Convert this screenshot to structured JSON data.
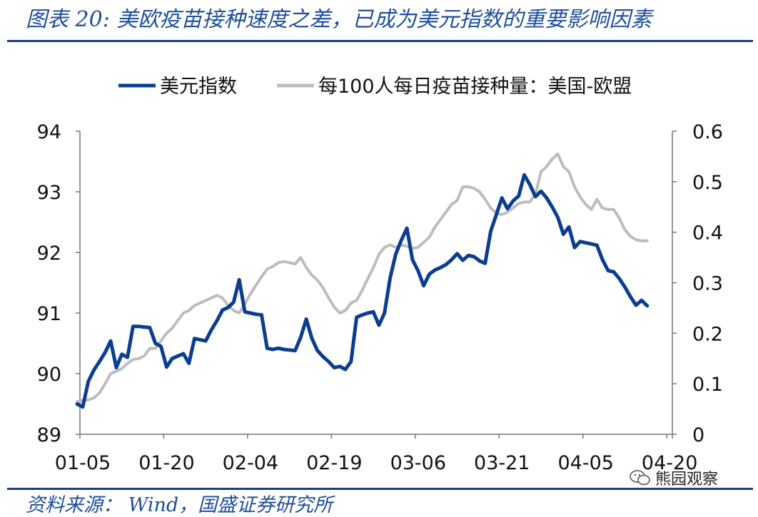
{
  "header": {
    "title": "图表 20:  美欧疫苗接种速度之差，已成为美元指数的重要影响因素"
  },
  "footer": {
    "source": "资料来源： Wind，国盛证券研究所"
  },
  "watermark": {
    "text": "熊园观察",
    "icon": "wechat-icon"
  },
  "colors": {
    "usd": "#0b3d91",
    "vax": "#bdbdbd",
    "rule": "#1a3f86",
    "title": "#1f4e9a"
  },
  "chart_data": {
    "type": "line",
    "title": "",
    "x_ticks": [
      "01-05",
      "01-20",
      "02-04",
      "02-19",
      "03-06",
      "03-21",
      "04-05",
      "04-20"
    ],
    "x_range": [
      1.5,
      107.5
    ],
    "y_left": {
      "ticks": [
        "94",
        "93",
        "92",
        "91",
        "90",
        "89"
      ],
      "range": [
        89,
        94
      ]
    },
    "y_right": {
      "ticks": [
        "0.6",
        "0.5",
        "0.4",
        "0.3",
        "0.2",
        "0.1",
        "0"
      ],
      "range": [
        0,
        0.6
      ]
    },
    "grid": false,
    "legend_position": "top-center",
    "series": [
      {
        "name": "美元指数",
        "axis": "left",
        "color": "#0b3d91",
        "points": [
          [
            1,
            89.5
          ],
          [
            2,
            89.45
          ],
          [
            3,
            89.87
          ],
          [
            4,
            90.06
          ],
          [
            5,
            90.2
          ],
          [
            6,
            90.35
          ],
          [
            7,
            90.54
          ],
          [
            8,
            90.1
          ],
          [
            9,
            90.32
          ],
          [
            10,
            90.27
          ],
          [
            11,
            90.78
          ],
          [
            12,
            90.78
          ],
          [
            13,
            90.77
          ],
          [
            14,
            90.76
          ],
          [
            15,
            90.5
          ],
          [
            16,
            90.45
          ],
          [
            17,
            90.11
          ],
          [
            18,
            90.25
          ],
          [
            19,
            90.29
          ],
          [
            20,
            90.33
          ],
          [
            21,
            90.17
          ],
          [
            22,
            90.58
          ],
          [
            23,
            90.56
          ],
          [
            24,
            90.54
          ],
          [
            25,
            90.72
          ],
          [
            26,
            90.87
          ],
          [
            27,
            91.05
          ],
          [
            28,
            91.09
          ],
          [
            29,
            91.18
          ],
          [
            30,
            91.55
          ],
          [
            31,
            91.02
          ],
          [
            32,
            91.0
          ],
          [
            33,
            90.98
          ],
          [
            34,
            90.97
          ],
          [
            35,
            90.42
          ],
          [
            36,
            90.4
          ],
          [
            37,
            90.42
          ],
          [
            38,
            90.4
          ],
          [
            39,
            90.39
          ],
          [
            40,
            90.38
          ],
          [
            41,
            90.6
          ],
          [
            42,
            90.9
          ],
          [
            43,
            90.58
          ],
          [
            44,
            90.38
          ],
          [
            45,
            90.28
          ],
          [
            46,
            90.2
          ],
          [
            47,
            90.1
          ],
          [
            48,
            90.12
          ],
          [
            49,
            90.07
          ],
          [
            50,
            90.2
          ],
          [
            51,
            90.93
          ],
          [
            52,
            90.97
          ],
          [
            53,
            91.0
          ],
          [
            54,
            91.02
          ],
          [
            55,
            90.8
          ],
          [
            56,
            91.0
          ],
          [
            57,
            91.58
          ],
          [
            58,
            91.97
          ],
          [
            59,
            92.2
          ],
          [
            60,
            92.4
          ],
          [
            61,
            91.88
          ],
          [
            62,
            91.7
          ],
          [
            63,
            91.45
          ],
          [
            64,
            91.64
          ],
          [
            65,
            91.71
          ],
          [
            66,
            91.75
          ],
          [
            67,
            91.8
          ],
          [
            68,
            91.88
          ],
          [
            69,
            91.98
          ],
          [
            70,
            91.87
          ],
          [
            71,
            91.95
          ],
          [
            72,
            91.93
          ],
          [
            73,
            91.86
          ],
          [
            74,
            91.82
          ],
          [
            75,
            92.35
          ],
          [
            76,
            92.62
          ],
          [
            77,
            92.9
          ],
          [
            78,
            92.72
          ],
          [
            79,
            92.85
          ],
          [
            80,
            92.93
          ],
          [
            81,
            93.28
          ],
          [
            82,
            93.12
          ],
          [
            83,
            92.92
          ],
          [
            84,
            93.01
          ],
          [
            85,
            92.9
          ],
          [
            86,
            92.75
          ],
          [
            87,
            92.58
          ],
          [
            88,
            92.3
          ],
          [
            89,
            92.42
          ],
          [
            90,
            92.08
          ],
          [
            91,
            92.18
          ],
          [
            92,
            92.16
          ],
          [
            93,
            92.14
          ],
          [
            94,
            92.12
          ],
          [
            95,
            91.88
          ],
          [
            96,
            91.7
          ],
          [
            97,
            91.68
          ],
          [
            98,
            91.57
          ],
          [
            99,
            91.43
          ],
          [
            100,
            91.27
          ],
          [
            101,
            91.13
          ],
          [
            102,
            91.21
          ],
          [
            103,
            91.12
          ]
        ]
      },
      {
        "name": "每100人每日疫苗接种量：美国-欧盟",
        "axis": "right",
        "color": "#bdbdbd",
        "points": [
          [
            1,
            0.065
          ],
          [
            2,
            0.067
          ],
          [
            3,
            0.068
          ],
          [
            4,
            0.072
          ],
          [
            5,
            0.082
          ],
          [
            6,
            0.1
          ],
          [
            7,
            0.12
          ],
          [
            8,
            0.125
          ],
          [
            9,
            0.13
          ],
          [
            10,
            0.14
          ],
          [
            11,
            0.148
          ],
          [
            12,
            0.15
          ],
          [
            13,
            0.155
          ],
          [
            14,
            0.17
          ],
          [
            15,
            0.17
          ],
          [
            16,
            0.185
          ],
          [
            17,
            0.2
          ],
          [
            18,
            0.21
          ],
          [
            19,
            0.225
          ],
          [
            20,
            0.24
          ],
          [
            21,
            0.245
          ],
          [
            22,
            0.255
          ],
          [
            23,
            0.26
          ],
          [
            24,
            0.265
          ],
          [
            25,
            0.27
          ],
          [
            26,
            0.275
          ],
          [
            27,
            0.27
          ],
          [
            28,
            0.255
          ],
          [
            29,
            0.245
          ],
          [
            30,
            0.24
          ],
          [
            31,
            0.258
          ],
          [
            32,
            0.278
          ],
          [
            33,
            0.295
          ],
          [
            34,
            0.312
          ],
          [
            35,
            0.327
          ],
          [
            36,
            0.332
          ],
          [
            37,
            0.34
          ],
          [
            38,
            0.342
          ],
          [
            39,
            0.34
          ],
          [
            40,
            0.337
          ],
          [
            41,
            0.35
          ],
          [
            42,
            0.33
          ],
          [
            43,
            0.315
          ],
          [
            44,
            0.305
          ],
          [
            45,
            0.29
          ],
          [
            46,
            0.27
          ],
          [
            47,
            0.252
          ],
          [
            48,
            0.24
          ],
          [
            49,
            0.245
          ],
          [
            50,
            0.26
          ],
          [
            51,
            0.265
          ],
          [
            52,
            0.285
          ],
          [
            53,
            0.308
          ],
          [
            54,
            0.33
          ],
          [
            55,
            0.356
          ],
          [
            56,
            0.37
          ],
          [
            57,
            0.375
          ],
          [
            58,
            0.37
          ],
          [
            59,
            0.375
          ],
          [
            60,
            0.372
          ],
          [
            61,
            0.368
          ],
          [
            62,
            0.37
          ],
          [
            63,
            0.38
          ],
          [
            64,
            0.39
          ],
          [
            65,
            0.41
          ],
          [
            66,
            0.425
          ],
          [
            67,
            0.44
          ],
          [
            68,
            0.455
          ],
          [
            69,
            0.463
          ],
          [
            70,
            0.49
          ],
          [
            71,
            0.49
          ],
          [
            72,
            0.487
          ],
          [
            73,
            0.48
          ],
          [
            74,
            0.465
          ],
          [
            75,
            0.448
          ],
          [
            76,
            0.438
          ],
          [
            77,
            0.435
          ],
          [
            78,
            0.44
          ],
          [
            79,
            0.448
          ],
          [
            80,
            0.457
          ],
          [
            81,
            0.46
          ],
          [
            82,
            0.46
          ],
          [
            83,
            0.475
          ],
          [
            84,
            0.52
          ],
          [
            85,
            0.53
          ],
          [
            86,
            0.545
          ],
          [
            87,
            0.555
          ],
          [
            88,
            0.53
          ],
          [
            89,
            0.52
          ],
          [
            90,
            0.49
          ],
          [
            91,
            0.47
          ],
          [
            92,
            0.455
          ],
          [
            93,
            0.445
          ],
          [
            94,
            0.465
          ],
          [
            95,
            0.448
          ],
          [
            96,
            0.445
          ],
          [
            97,
            0.445
          ],
          [
            98,
            0.428
          ],
          [
            99,
            0.405
          ],
          [
            100,
            0.392
          ],
          [
            101,
            0.385
          ],
          [
            102,
            0.383
          ],
          [
            103,
            0.383
          ]
        ]
      }
    ]
  }
}
